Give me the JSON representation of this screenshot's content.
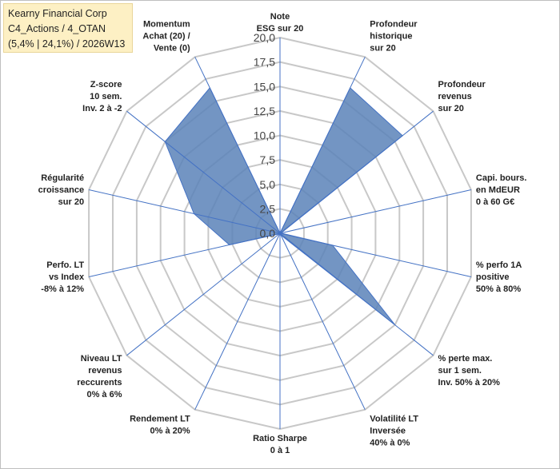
{
  "header": {
    "line1": "Kearny Financial Corp",
    "line2": "C4_Actions / 4_OTAN",
    "line3": "(5,4% | 24,1%) / 2026W13"
  },
  "colors": {
    "fill": "#5b83b8",
    "stroke": "#4472c4",
    "grid": "#c8c8c8",
    "title_bg": "#fdf0c4"
  },
  "chart_data": {
    "type": "radar",
    "rmin": 0,
    "rmax": 20,
    "step": 2.5,
    "ticks": [
      "0,0",
      "2,5",
      "5,0",
      "7,5",
      "10,0",
      "12,5",
      "15,0",
      "17,5",
      "20,0"
    ],
    "axes": [
      {
        "label": [
          "Note",
          "ESG sur 20"
        ],
        "value": 0
      },
      {
        "label": [
          "Profondeur",
          "historique",
          "sur 20"
        ],
        "value": 16.5
      },
      {
        "label": [
          "Profondeur",
          "revenus",
          "sur 20"
        ],
        "value": 16.0
      },
      {
        "label": [
          "Capi. bours.",
          "en MdEUR",
          "0 à 60 G€"
        ],
        "value": 0.1
      },
      {
        "label": [
          "% perfo 1A",
          "positive",
          "50% à 80%"
        ],
        "value": 5.5
      },
      {
        "label": [
          "% perte max.",
          "sur 1 sem.",
          "Inv. 50% à 20%"
        ],
        "value": 15.0
      },
      {
        "label": [
          "Volatilité LT",
          "Inversée",
          "40% à 0%"
        ],
        "value": 0.2
      },
      {
        "label": [
          "Ratio Sharpe",
          "0 à 1"
        ],
        "value": 0.1
      },
      {
        "label": [
          "Rendement LT",
          "0% à 20%"
        ],
        "value": 0.1
      },
      {
        "label": [
          "Niveau LT",
          "revenus",
          "reccurents",
          "0% à 6%"
        ],
        "value": 0.1
      },
      {
        "label": [
          "Perfo. LT",
          "vs Index",
          "-8% à 12%"
        ],
        "value": 5.3
      },
      {
        "label": [
          "Régularité",
          "croissance",
          "sur 20"
        ],
        "value": 9.0
      },
      {
        "label": [
          "Z-score",
          "10 sem.",
          "Inv. 2 à -2"
        ],
        "value": 15.0
      },
      {
        "label": [
          "Momentum",
          "Achat (20) /",
          "Vente (0)"
        ],
        "value": 16.5
      }
    ]
  }
}
